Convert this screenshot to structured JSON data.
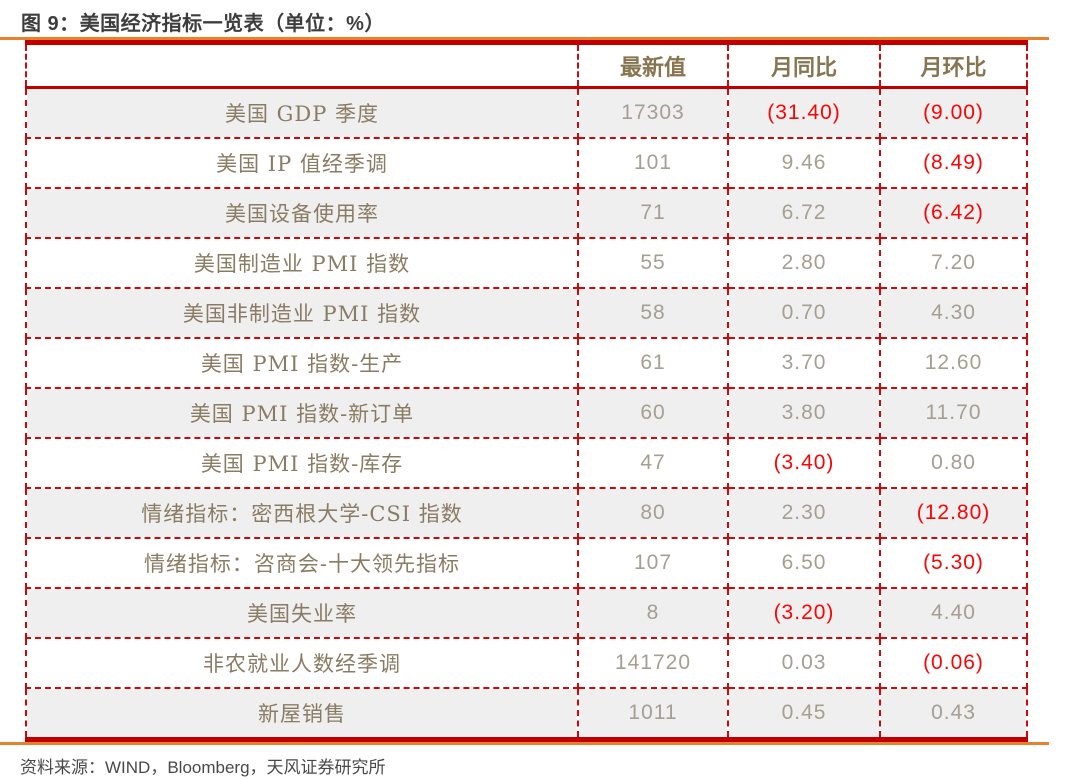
{
  "figure": {
    "title": "图 9：美国经济指标一览表（单位：%）",
    "source": "资料来源：WIND，Bloomberg，天风证券研究所"
  },
  "colors": {
    "accent_orange": "#e9802c",
    "border_red": "#c00000",
    "negative_red": "#f90505",
    "label_brown": "#8a7b63",
    "number_gray": "#a69e91",
    "alt_row_bg": "#efefef"
  },
  "chart_data": {
    "type": "table",
    "columns": [
      "",
      "最新值",
      "月同比",
      "月环比"
    ],
    "rows": [
      {
        "label": "美国 GDP 季度",
        "latest": "17303",
        "yoy": "(31.40)",
        "mom": "(9.00)"
      },
      {
        "label": "美国 IP 值经季调",
        "latest": "101",
        "yoy": "9.46",
        "mom": "(8.49)"
      },
      {
        "label": "美国设备使用率",
        "latest": "71",
        "yoy": "6.72",
        "mom": "(6.42)"
      },
      {
        "label": "美国制造业 PMI 指数",
        "latest": "55",
        "yoy": "2.80",
        "mom": "7.20"
      },
      {
        "label": "美国非制造业 PMI 指数",
        "latest": "58",
        "yoy": "0.70",
        "mom": "4.30"
      },
      {
        "label": "美国 PMI 指数-生产",
        "latest": "61",
        "yoy": "3.70",
        "mom": "12.60"
      },
      {
        "label": "美国 PMI 指数-新订单",
        "latest": "60",
        "yoy": "3.80",
        "mom": "11.70"
      },
      {
        "label": "美国 PMI 指数-库存",
        "latest": "47",
        "yoy": "(3.40)",
        "mom": "0.80"
      },
      {
        "label": "情绪指标：密西根大学-CSI 指数",
        "latest": "80",
        "yoy": "2.30",
        "mom": "(12.80)"
      },
      {
        "label": "情绪指标：咨商会-十大领先指标",
        "latest": "107",
        "yoy": "6.50",
        "mom": "(5.30)"
      },
      {
        "label": "美国失业率",
        "latest": "8",
        "yoy": "(3.20)",
        "mom": "4.40"
      },
      {
        "label": "非农就业人数经季调",
        "latest": "141720",
        "yoy": "0.03",
        "mom": "(0.06)"
      },
      {
        "label": "新屋销售",
        "latest": "1011",
        "yoy": "0.45",
        "mom": "0.43"
      }
    ]
  }
}
